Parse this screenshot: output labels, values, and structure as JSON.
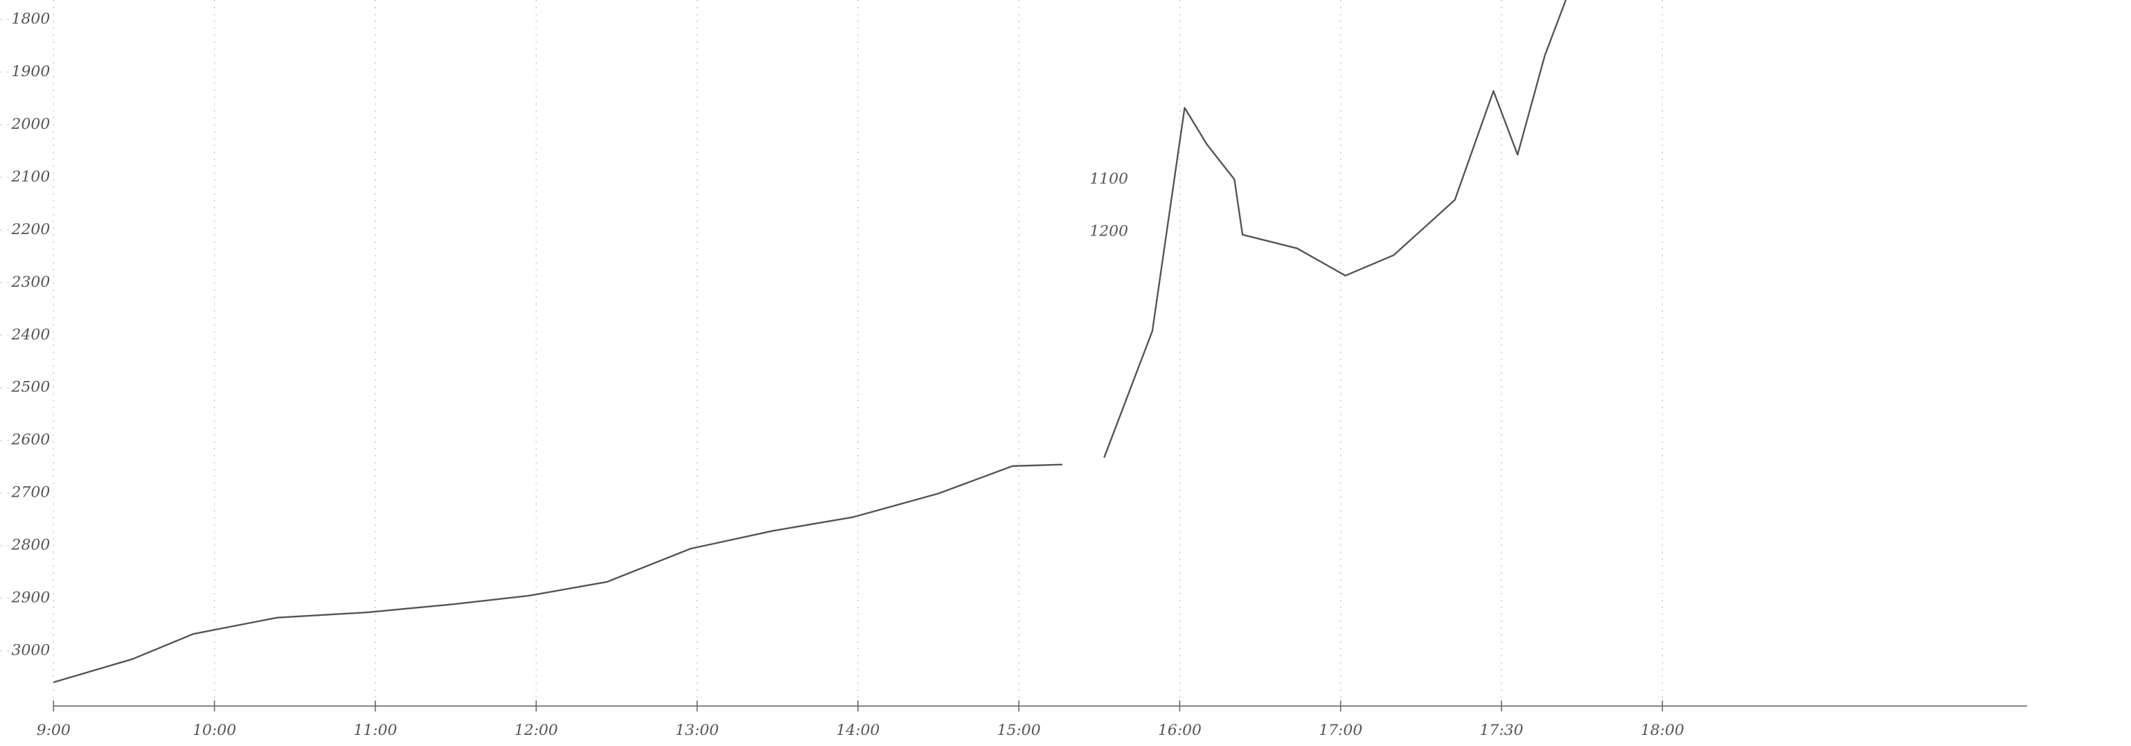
{
  "chart_data": {
    "type": "line",
    "x": [
      9.0,
      9.49,
      9.87,
      10.39,
      10.95,
      11.5,
      11.96,
      12.44,
      12.96,
      13.47,
      13.97,
      14.5,
      14.96,
      15.27,
      null,
      15.53,
      15.83,
      16.03,
      16.17,
      16.34,
      16.39,
      16.73,
      17.03,
      17.33,
      17.71,
      17.95,
      18.1,
      18.27,
      18.4
    ],
    "series": [
      {
        "color": "#555555",
        "values": [
          3060,
          3016,
          2968,
          2937,
          2927,
          2911,
          2895,
          2869,
          2806,
          2772,
          2746,
          2701,
          2649,
          2646,
          null,
          2633,
          2392,
          1968,
          2038,
          2104,
          2209,
          2235,
          2287,
          2248,
          2143,
          1936,
          2057,
          1868,
          1763
        ]
      }
    ],
    "xlim": [
      8.67,
      21.91
    ],
    "xticks": [
      {
        "value": 9,
        "label": "9:00"
      },
      {
        "value": 10,
        "label": "10:00"
      },
      {
        "value": 11,
        "label": "11:00"
      },
      {
        "value": 12,
        "label": "12:00"
      },
      {
        "value": 13,
        "label": "13:00"
      },
      {
        "value": 14,
        "label": "14:00"
      },
      {
        "value": 15,
        "label": "15:00"
      },
      {
        "value": 16,
        "label": "16:00"
      },
      {
        "value": 17,
        "label": "17:00"
      },
      {
        "value": 18,
        "label": "17:30"
      },
      {
        "value": 19,
        "label": "18:00"
      }
    ],
    "ylim": [
      3105,
      1763
    ],
    "yticks": [
      1800,
      1900,
      2000,
      2100,
      2200,
      2300,
      2400,
      2500,
      2600,
      2700,
      2800,
      2900,
      3000
    ],
    "annotations": [
      "1100",
      "1200"
    ],
    "grid": true
  }
}
